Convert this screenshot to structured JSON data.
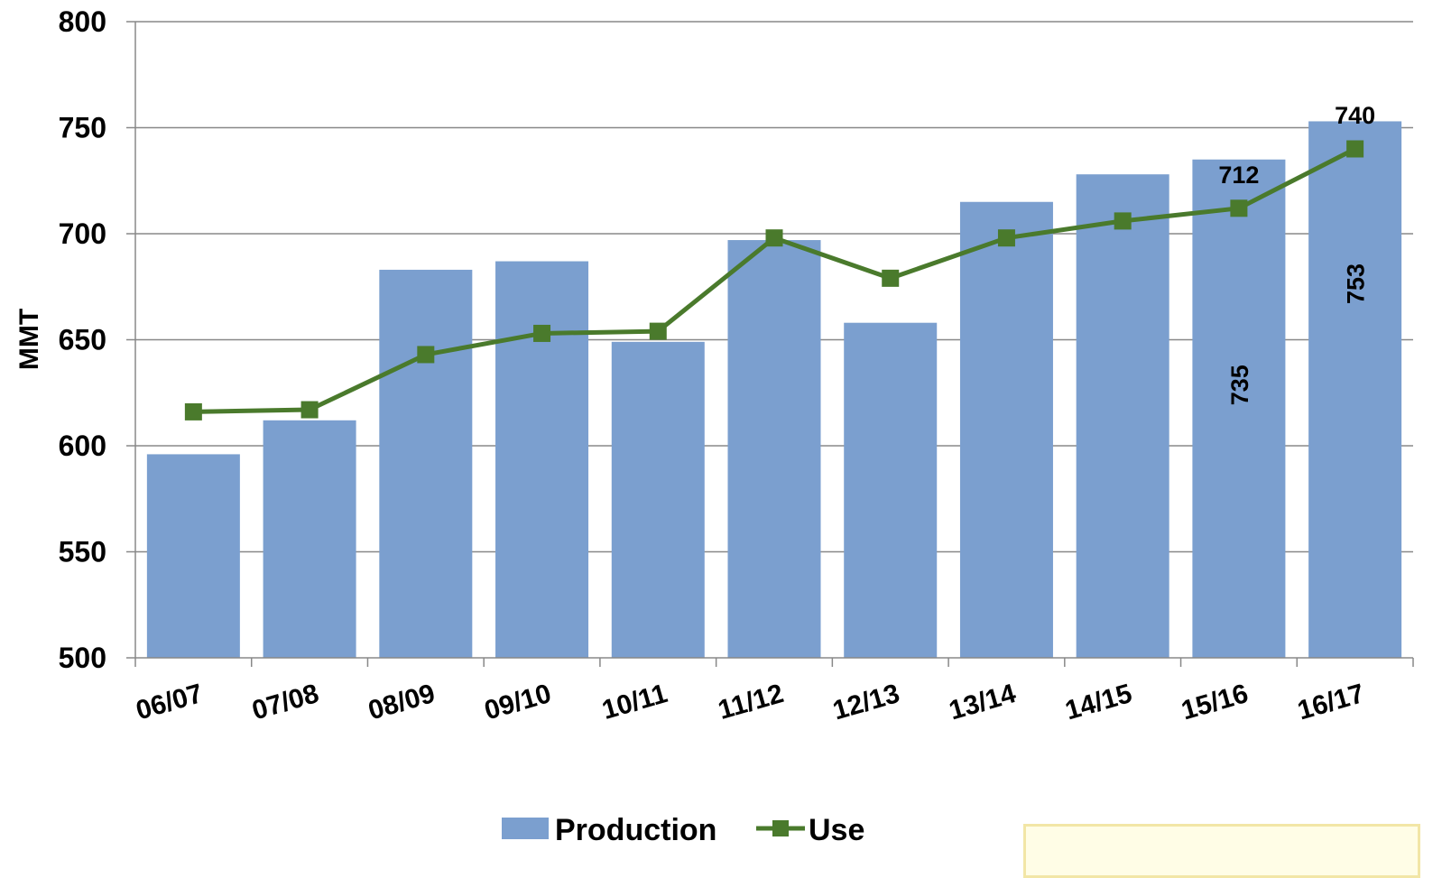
{
  "chart_data": {
    "type": "bar",
    "title": "",
    "xlabel": "",
    "ylabel": "MMT",
    "ylim": [
      500,
      800
    ],
    "yticks": [
      500,
      550,
      600,
      650,
      700,
      750,
      800
    ],
    "categories": [
      "06/07",
      "07/08",
      "08/09",
      "09/10",
      "10/11",
      "11/12",
      "12/13",
      "13/14",
      "14/15",
      "15/16",
      "16/17"
    ],
    "grid": true,
    "legend_position": "bottom",
    "series": [
      {
        "name": "Production",
        "type": "bar",
        "color": "#7b9fcf",
        "values": [
          596,
          612,
          683,
          687,
          649,
          697,
          658,
          715,
          728,
          735,
          753
        ],
        "data_labels": [
          "",
          "",
          "",
          "",
          "",
          "",
          "",
          "",
          "",
          "735",
          "753"
        ]
      },
      {
        "name": "Use",
        "type": "line",
        "marker": "square",
        "color": "#4a7a2c",
        "values": [
          616,
          617,
          643,
          653,
          654,
          698,
          679,
          698,
          706,
          712,
          740
        ],
        "data_labels": [
          "",
          "",
          "",
          "",
          "",
          "",
          "",
          "",
          "",
          "712",
          "740"
        ]
      }
    ]
  }
}
